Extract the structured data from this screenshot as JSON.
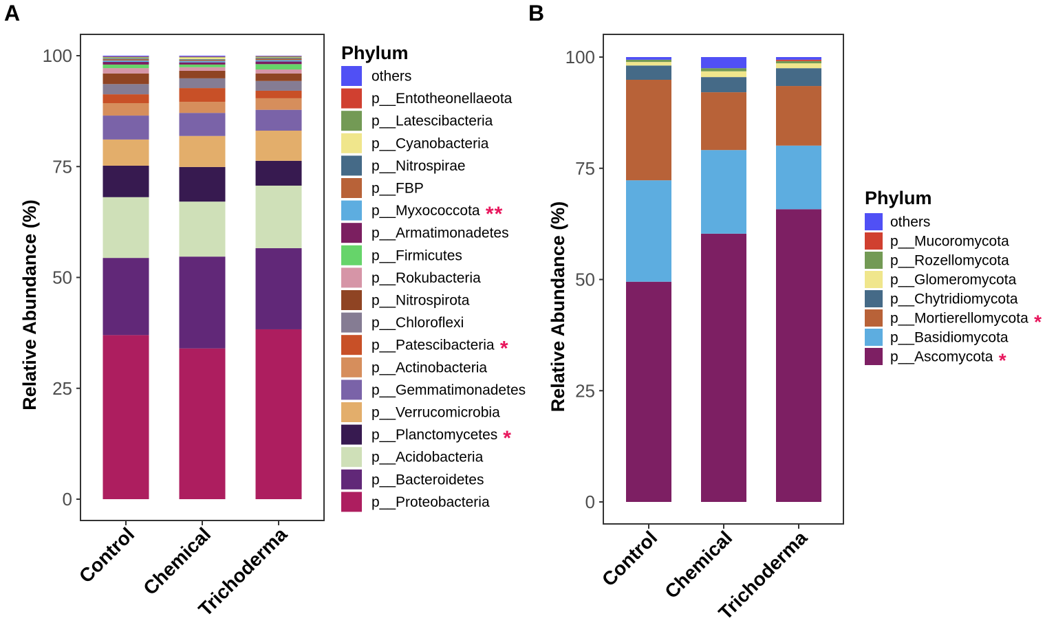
{
  "chart_data": [
    {
      "panel_label": "A",
      "type": "bar",
      "stacked": true,
      "ylabel": "Relative Abundance (%)",
      "xlabel": "",
      "ylim": [
        0,
        100
      ],
      "yticks": [
        "0",
        "25",
        "50",
        "75",
        "100"
      ],
      "categories": [
        "Control",
        "Chemical",
        "Trichoderma"
      ],
      "legend_title": "Phylum",
      "legend_position": "right",
      "series": [
        {
          "name": "p__Proteobacteria",
          "color": "#ad1e5f",
          "sig": "",
          "values": [
            37.0,
            34.0,
            38.3
          ]
        },
        {
          "name": "p__Bacteroidetes",
          "color": "#612878",
          "sig": "",
          "values": [
            17.4,
            20.7,
            18.3
          ]
        },
        {
          "name": "p__Acidobacteria",
          "color": "#cfe0b8",
          "sig": "",
          "values": [
            13.7,
            12.4,
            14.1
          ]
        },
        {
          "name": "p__Planctomycetes",
          "color": "#371a50",
          "sig": "*",
          "values": [
            7.1,
            7.8,
            5.6
          ]
        },
        {
          "name": "p__Verrucomicrobia",
          "color": "#e3ae6b",
          "sig": "",
          "values": [
            5.9,
            7.0,
            6.8
          ]
        },
        {
          "name": "p__Gemmatimonadetes",
          "color": "#7a63a8",
          "sig": "",
          "values": [
            5.4,
            5.2,
            4.7
          ]
        },
        {
          "name": "p__Actinobacteria",
          "color": "#d68e5c",
          "sig": "",
          "values": [
            2.8,
            2.5,
            2.6
          ]
        },
        {
          "name": "p__Patescibacteria",
          "color": "#c85027",
          "sig": "*",
          "values": [
            2.0,
            3.1,
            1.7
          ]
        },
        {
          "name": "p__Chloroflexi",
          "color": "#857c93",
          "sig": "",
          "values": [
            2.3,
            2.2,
            2.2
          ]
        },
        {
          "name": "p__Nitrospirota",
          "color": "#8f4423",
          "sig": "",
          "values": [
            2.4,
            1.7,
            1.7
          ]
        },
        {
          "name": "p__Rokubacteria",
          "color": "#d695a7",
          "sig": "",
          "values": [
            1.2,
            0.8,
            0.9
          ]
        },
        {
          "name": "p__Firmicutes",
          "color": "#66d46a",
          "sig": "",
          "values": [
            0.8,
            0.6,
            1.2
          ]
        },
        {
          "name": "p__Armatimonadetes",
          "color": "#7b1f60",
          "sig": "",
          "values": [
            0.6,
            0.5,
            0.6
          ]
        },
        {
          "name": "p__Myxococcota",
          "color": "#5dade0",
          "sig": "**",
          "values": [
            0.3,
            0.3,
            0.3
          ]
        },
        {
          "name": "p__FBP",
          "color": "#b86238",
          "sig": "",
          "values": [
            0.3,
            0.2,
            0.3
          ]
        },
        {
          "name": "p__Nitrospirae",
          "color": "#456a87",
          "sig": "",
          "values": [
            0.2,
            0.2,
            0.2
          ]
        },
        {
          "name": "p__Cyanobacteria",
          "color": "#f0e68c",
          "sig": "",
          "values": [
            0.1,
            0.4,
            0.1
          ]
        },
        {
          "name": "p__Latescibacteria",
          "color": "#739a55",
          "sig": "",
          "values": [
            0.2,
            0.1,
            0.2
          ]
        },
        {
          "name": "p__Entotheonellaeota",
          "color": "#d04030",
          "sig": "",
          "values": [
            0.1,
            0.1,
            0.1
          ]
        },
        {
          "name": "others",
          "color": "#5050f5",
          "sig": "",
          "values": [
            0.2,
            0.2,
            0.1
          ]
        }
      ]
    },
    {
      "panel_label": "B",
      "type": "bar",
      "stacked": true,
      "ylabel": "Relative Abundance (%)",
      "xlabel": "",
      "ylim": [
        0,
        100
      ],
      "yticks": [
        "0",
        "25",
        "50",
        "75",
        "100"
      ],
      "categories": [
        "Control",
        "Chemical",
        "Trichoderma"
      ],
      "legend_title": "Phylum",
      "legend_position": "right",
      "series": [
        {
          "name": "p__Ascomycota",
          "color": "#7d1f63",
          "sig": "*",
          "values": [
            49.5,
            60.3,
            65.8
          ]
        },
        {
          "name": "p__Basidiomycota",
          "color": "#5dade0",
          "sig": "",
          "values": [
            22.8,
            18.8,
            14.3
          ]
        },
        {
          "name": "p__Mortierellomycota",
          "color": "#b86238",
          "sig": "*",
          "values": [
            22.6,
            13.0,
            13.4
          ]
        },
        {
          "name": "p__Chytridiomycota",
          "color": "#456a87",
          "sig": "",
          "values": [
            3.2,
            3.4,
            4.0
          ]
        },
        {
          "name": "p__Glomeromycota",
          "color": "#f0e68c",
          "sig": "",
          "values": [
            0.8,
            1.3,
            1.1
          ]
        },
        {
          "name": "p__Rozellomycota",
          "color": "#739a55",
          "sig": "",
          "values": [
            0.5,
            0.7,
            0.5
          ]
        },
        {
          "name": "p__Mucoromycota",
          "color": "#d04030",
          "sig": "",
          "values": [
            0.0,
            0.0,
            0.3
          ]
        },
        {
          "name": "others",
          "color": "#5050f5",
          "sig": "",
          "values": [
            0.6,
            2.5,
            0.6
          ]
        }
      ]
    }
  ]
}
